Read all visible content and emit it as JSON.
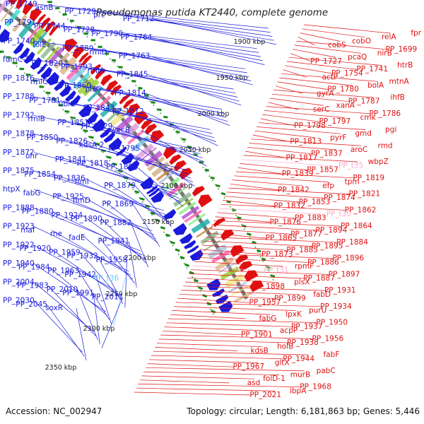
{
  "title": "Pseudomonas putida KT2440, complete genome",
  "footer": {
    "accession": "Accession: NC_002947",
    "summary": "Topology: circular; Length: 6,181,863 bp; Genes: 5,446"
  },
  "colors": {
    "plus_strand": "#1a1adc",
    "minus_strand": "#e01010",
    "rna_plus": "#66ccff",
    "rna_minus": "#ffaacc",
    "backbone": "#777777",
    "tick": "#1a8a1a"
  },
  "kbp_ticks": [
    "1900 kbp",
    "1950 kbp",
    "2000 kbp",
    "2050 kbp",
    "2100 kbp",
    "2150 kbp",
    "2200 kbp",
    "2250 kbp",
    "2300 kbp",
    "2350 kbp"
  ],
  "left_labels": [
    {
      "text": "PP_1749",
      "rna": false
    },
    {
      "text": "asnB",
      "rna": false
    },
    {
      "text": "PP_1729",
      "rna": false
    },
    {
      "text": "prc",
      "rna": false
    },
    {
      "text": "PP_1712",
      "rna": false
    },
    {
      "text": "PP_1791",
      "rna": false
    },
    {
      "text": "PP_1744",
      "rna": false
    },
    {
      "text": "PP_1728",
      "rna": false
    },
    {
      "text": "PP_1790",
      "rna": false
    },
    {
      "text": "PP_1764",
      "rna": false
    },
    {
      "text": "PP_1740",
      "rna": false
    },
    {
      "text": "folE",
      "rna": false
    },
    {
      "text": "PP_1789",
      "rna": false
    },
    {
      "text": "rmlD",
      "rna": false
    },
    {
      "text": "PP_1763",
      "rna": false
    },
    {
      "text": "fumC-2",
      "rna": false
    },
    {
      "text": "PP_1820",
      "rna": false
    },
    {
      "text": "PP_1793",
      "rna": false
    },
    {
      "text": "rmlA",
      "rna": false
    },
    {
      "text": "PP_1845",
      "rna": false
    },
    {
      "text": "PP_1816",
      "rna": false
    },
    {
      "text": "rmlC",
      "rna": false
    },
    {
      "text": "PP_1860",
      "rna": false
    },
    {
      "text": "plsC",
      "rna": false
    },
    {
      "text": "PP_1814",
      "rna": false
    },
    {
      "text": "PP_1788",
      "rna": false
    },
    {
      "text": "PP_1781",
      "rna": false
    },
    {
      "text": "ubiG",
      "rna": false
    },
    {
      "text": "PP_1843",
      "rna": false
    },
    {
      "text": "PP_1812",
      "rna": false
    },
    {
      "text": "PP_1792",
      "rna": false
    },
    {
      "text": "rmlB",
      "rna": false
    },
    {
      "text": "PP_1851",
      "rna": false
    },
    {
      "text": "PP_1829",
      "rna": false
    },
    {
      "text": "wecB",
      "rna": false
    },
    {
      "text": "PP_1878",
      "rna": false
    },
    {
      "text": "PP_1850",
      "rna": false
    },
    {
      "text": "PP_1826",
      "rna": false
    },
    {
      "text": "kdsA-2",
      "rna": false
    },
    {
      "text": "PP_1795",
      "rna": false
    },
    {
      "text": "PP_1872",
      "rna": false
    },
    {
      "text": "ohr",
      "rna": false
    },
    {
      "text": "PP_1841",
      "rna": false
    },
    {
      "text": "PP_1818",
      "rna": false
    },
    {
      "text": "PP_1892",
      "rna": false
    },
    {
      "text": "PP_1875",
      "rna": false
    },
    {
      "text": "PP_1854",
      "rna": false
    },
    {
      "text": "PP_1836",
      "rna": false
    },
    {
      "text": "fimI",
      "rna": false
    },
    {
      "text": "PP_1879",
      "rna": false
    },
    {
      "text": "htpX",
      "rna": false
    },
    {
      "text": "fabG",
      "rna": false
    },
    {
      "text": "PP_1925",
      "rna": false
    },
    {
      "text": "fimD",
      "rna": false
    },
    {
      "text": "PP_1869",
      "rna": false
    },
    {
      "text": "PP_1888",
      "rna": false
    },
    {
      "text": "PP_1880",
      "rna": false
    },
    {
      "text": "PP_1924",
      "rna": false
    },
    {
      "text": "PP_1890",
      "rna": false
    },
    {
      "text": "PP_1882",
      "rna": false
    },
    {
      "text": "PP_1923",
      "rna": false
    },
    {
      "text": "maf",
      "rna": false
    },
    {
      "text": "rne",
      "rna": false
    },
    {
      "text": "fadE",
      "rna": false
    },
    {
      "text": "PP_1941",
      "rna": false
    },
    {
      "text": "PP_1922",
      "rna": false
    },
    {
      "text": "PP_1920",
      "rna": false
    },
    {
      "text": "PP_1959",
      "rna": false
    },
    {
      "text": "PP_1932",
      "rna": false
    },
    {
      "text": "PP_1958",
      "rna": false
    },
    {
      "text": "PP_1940",
      "rna": false
    },
    {
      "text": "PP_1984",
      "rna": false
    },
    {
      "text": "PP_1963",
      "rna": false
    },
    {
      "text": "PP_1942",
      "rna": false
    },
    {
      "text": "PP_t36",
      "rna": true
    },
    {
      "text": "PP_2004",
      "rna": false
    },
    {
      "text": "PP_1983",
      "rna": false
    },
    {
      "text": "PP_2010",
      "rna": false
    },
    {
      "text": "PP_1991",
      "rna": false
    },
    {
      "text": "PP_2011",
      "rna": false
    },
    {
      "text": "PP_2030",
      "rna": false
    },
    {
      "text": "PP_2045",
      "rna": false
    },
    {
      "text": "soxR",
      "rna": false
    }
  ],
  "right_labels": [
    {
      "text": "fpr",
      "rna": false
    },
    {
      "text": "relA",
      "rna": false
    },
    {
      "text": "cobO",
      "rna": false
    },
    {
      "text": "cobS",
      "rna": false
    },
    {
      "text": "PP_1699",
      "rna": false
    },
    {
      "text": "nirB",
      "rna": false
    },
    {
      "text": "pcaQ",
      "rna": false
    },
    {
      "text": "PP_1727",
      "rna": false
    },
    {
      "text": "htrB",
      "rna": false
    },
    {
      "text": "PP_1741",
      "rna": false
    },
    {
      "text": "PP_1754",
      "rna": false
    },
    {
      "text": "actP",
      "rna": false
    },
    {
      "text": "mtnA",
      "rna": false
    },
    {
      "text": "bolA",
      "rna": false
    },
    {
      "text": "PP_1780",
      "rna": false
    },
    {
      "text": "gyrA",
      "rna": false
    },
    {
      "text": "ihfB",
      "rna": false
    },
    {
      "text": "PP_1787",
      "rna": false
    },
    {
      "text": "xanA",
      "rna": false
    },
    {
      "text": "serC",
      "rna": false
    },
    {
      "text": "PP_1786",
      "rna": false
    },
    {
      "text": "cmk",
      "rna": false
    },
    {
      "text": "PP_1797",
      "rna": false
    },
    {
      "text": "PP_1798",
      "rna": false
    },
    {
      "text": "pgi",
      "rna": false
    },
    {
      "text": "gmd",
      "rna": false
    },
    {
      "text": "pyrF",
      "rna": false
    },
    {
      "text": "PP_1813",
      "rna": false
    },
    {
      "text": "rmd",
      "rna": false
    },
    {
      "text": "aroC",
      "rna": false
    },
    {
      "text": "PP_1837",
      "rna": false
    },
    {
      "text": "PP_1817",
      "rna": false
    },
    {
      "text": "wbpZ",
      "rna": false
    },
    {
      "text": "PP_t35",
      "rna": true
    },
    {
      "text": "PP_1857",
      "rna": false
    },
    {
      "text": "PP_1839",
      "rna": false
    },
    {
      "text": "PP_1819",
      "rna": false
    },
    {
      "text": "tpm",
      "rna": false
    },
    {
      "text": "efp",
      "rna": false
    },
    {
      "text": "PP_1842",
      "rna": false
    },
    {
      "text": "PP_1821",
      "rna": false
    },
    {
      "text": "PP_1874",
      "rna": false
    },
    {
      "text": "PP_1853",
      "rna": false
    },
    {
      "text": "PP_1832",
      "rna": false
    },
    {
      "text": "PP_1862",
      "rna": false
    },
    {
      "text": "PP_t30",
      "rna": true
    },
    {
      "text": "PP_1883",
      "rna": false
    },
    {
      "text": "PP_1876",
      "rna": false
    },
    {
      "text": "PP_1864",
      "rna": false
    },
    {
      "text": "PP_1894",
      "rna": false
    },
    {
      "text": "PP_1877",
      "rna": false
    },
    {
      "text": "PP_1865",
      "rna": false
    },
    {
      "text": "PP_1884",
      "rna": false
    },
    {
      "text": "PP_1895",
      "rna": false
    },
    {
      "text": "PP_1885",
      "rna": false
    },
    {
      "text": "PP_1873",
      "rna": false
    },
    {
      "text": "PP_1896",
      "rna": false
    },
    {
      "text": "PP_1886",
      "rna": false
    },
    {
      "text": "rpmF",
      "rna": false
    },
    {
      "text": "PP_t31",
      "rna": true
    },
    {
      "text": "PP_1897",
      "rna": false
    },
    {
      "text": "PP_1887",
      "rna": false
    },
    {
      "text": "plsX",
      "rna": false
    },
    {
      "text": "PP_1898",
      "rna": false
    },
    {
      "text": "PP_1931",
      "rna": false
    },
    {
      "text": "fabD",
      "rna": false
    },
    {
      "text": "PP_1899",
      "rna": false
    },
    {
      "text": "PP_1957",
      "rna": false
    },
    {
      "text": "PP_1934",
      "rna": false
    },
    {
      "text": "purU",
      "rna": false
    },
    {
      "text": "lpxK",
      "rna": false
    },
    {
      "text": "fabG",
      "rna": false
    },
    {
      "text": "PP_1950",
      "rna": false
    },
    {
      "text": "PP_1937",
      "rna": false
    },
    {
      "text": "acpP",
      "rna": false
    },
    {
      "text": "PP_1901",
      "rna": false
    },
    {
      "text": "PP_1956",
      "rna": false
    },
    {
      "text": "PP_1938",
      "rna": false
    },
    {
      "text": "holB",
      "rna": false
    },
    {
      "text": "kdsB",
      "rna": false
    },
    {
      "text": "fabF",
      "rna": false
    },
    {
      "text": "PP_1944",
      "rna": false
    },
    {
      "text": "gltX",
      "rna": false
    },
    {
      "text": "PP_1967",
      "rna": false
    },
    {
      "text": "pabC",
      "rna": false
    },
    {
      "text": "murB",
      "rna": false
    },
    {
      "text": "folD-1",
      "rna": false
    },
    {
      "text": "asd",
      "rna": false
    },
    {
      "text": "PP_1968",
      "rna": false
    },
    {
      "text": "ibpA",
      "rna": false
    },
    {
      "text": "PP_2021",
      "rna": false
    }
  ]
}
